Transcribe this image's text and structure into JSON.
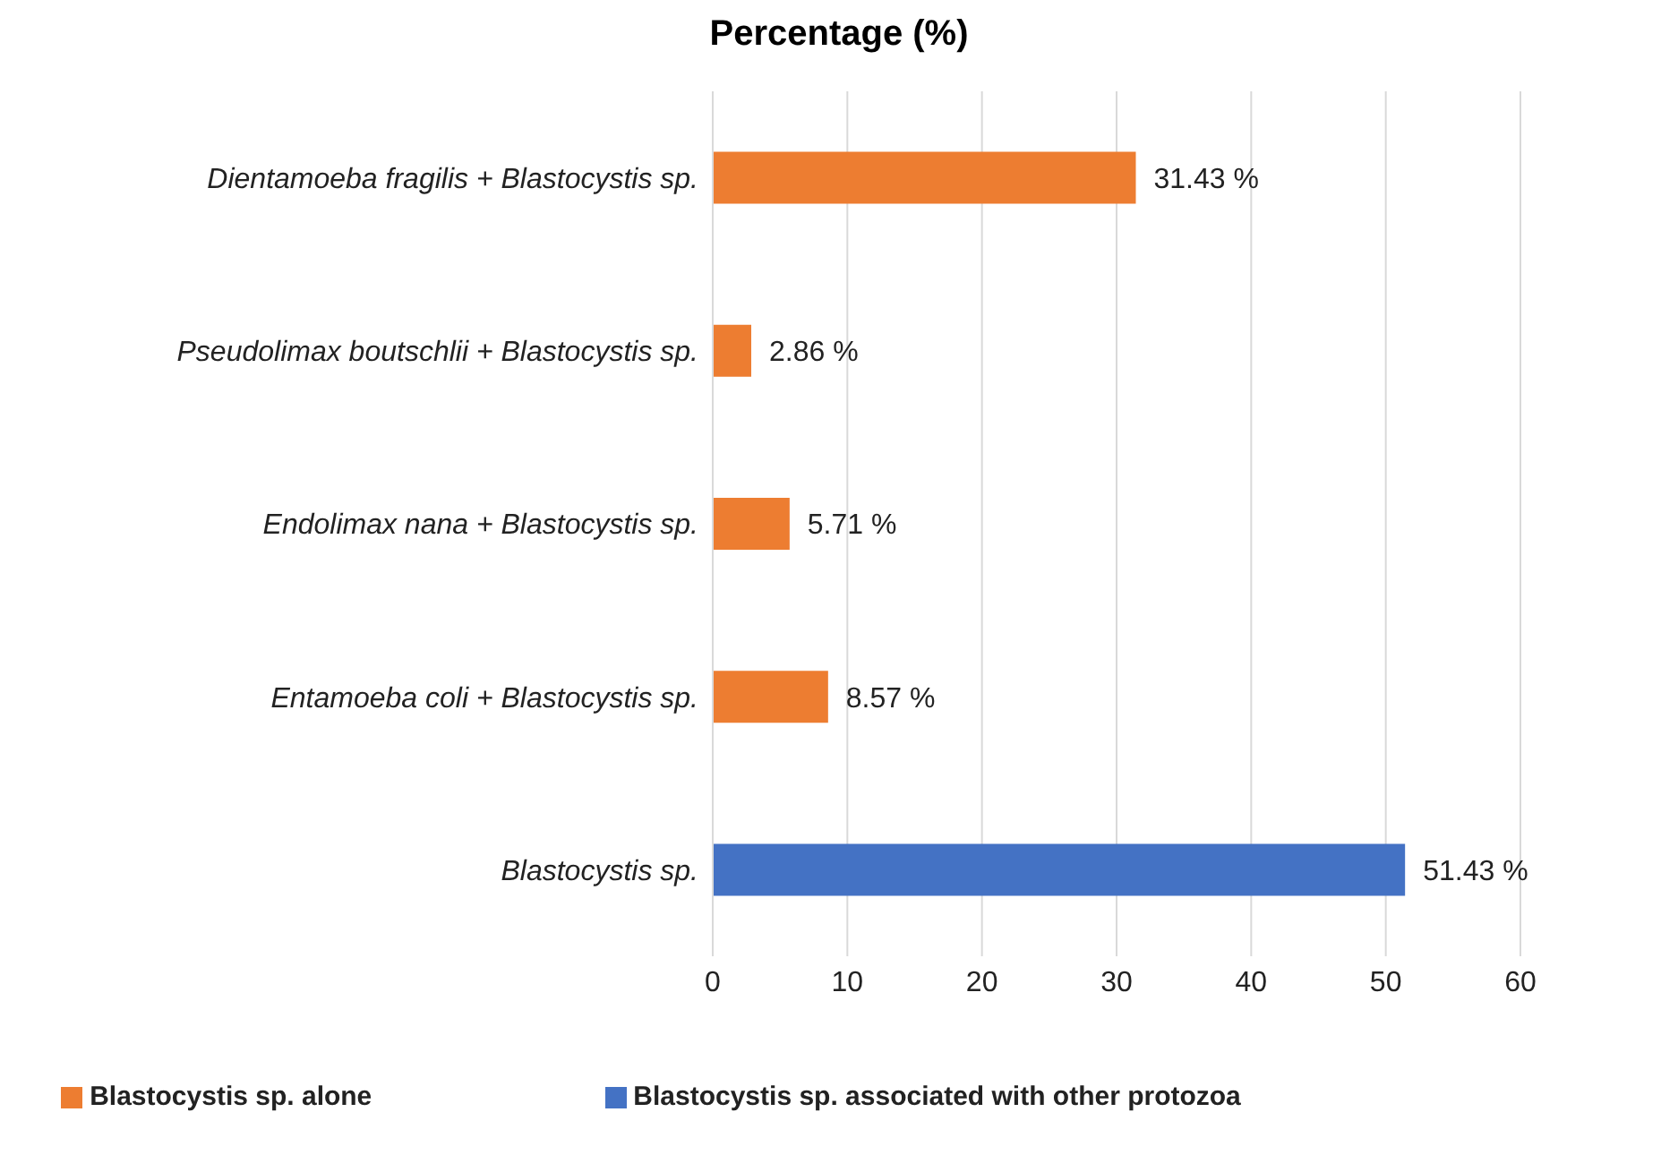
{
  "chart_data": {
    "type": "bar",
    "orientation": "horizontal",
    "stacked": true,
    "title": "Percentage (%)",
    "categories": [
      "Dientamoeba fragilis + Blastocystis sp.",
      "Pseudolimax boutschlii + Blastocystis sp.",
      "Endolimax nana + Blastocystis sp.",
      "Entamoeba coli + Blastocystis sp.",
      "Blastocystis sp."
    ],
    "series": [
      {
        "name": "Blastocystis sp. alone",
        "color": "#ed7d31",
        "values": [
          31.43,
          2.86,
          5.71,
          8.57,
          null
        ],
        "value_labels": [
          "31.43 %",
          "2.86 %",
          "5.71 %",
          "8.57 %",
          null
        ]
      },
      {
        "name": "Blastocystis sp. associated with other protozoa",
        "color": "#4472c4",
        "values": [
          null,
          null,
          null,
          null,
          51.43
        ],
        "value_labels": [
          null,
          null,
          null,
          null,
          "51.43 %"
        ]
      }
    ],
    "xlim": [
      0,
      60
    ],
    "xticks": [
      0,
      10,
      20,
      30,
      40,
      50,
      60
    ],
    "grid": "x",
    "legend": "bottom"
  }
}
